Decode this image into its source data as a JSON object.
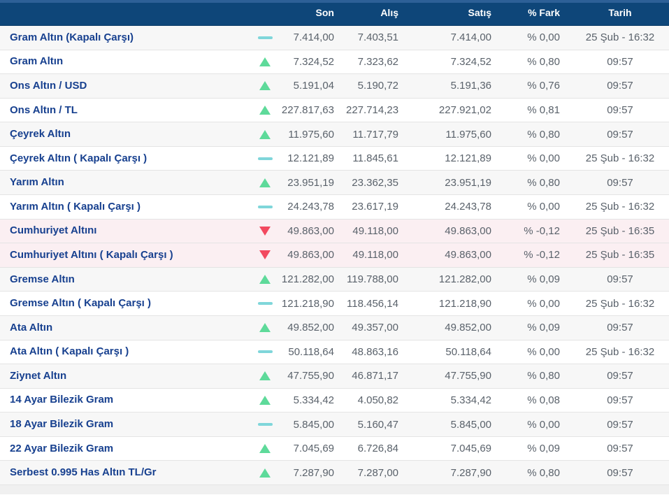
{
  "table": {
    "headers": {
      "son": "Son",
      "alis": "Alış",
      "satis": "Satış",
      "fark": "% Fark",
      "tarih": "Tarih"
    },
    "rows": [
      {
        "name": "Gram Altın (Kapalı Çarşı)",
        "dir": "flat",
        "son": "7.414,00",
        "alis": "7.403,51",
        "satis": "7.414,00",
        "fark": "% 0,00",
        "tarih": "25 Şub - 16:32"
      },
      {
        "name": "Gram Altın",
        "dir": "up",
        "son": "7.324,52",
        "alis": "7.323,62",
        "satis": "7.324,52",
        "fark": "% 0,80",
        "tarih": "09:57"
      },
      {
        "name": "Ons Altın / USD",
        "dir": "up",
        "son": "5.191,04",
        "alis": "5.190,72",
        "satis": "5.191,36",
        "fark": "% 0,76",
        "tarih": "09:57"
      },
      {
        "name": "Ons Altın / TL",
        "dir": "up",
        "son": "227.817,63",
        "alis": "227.714,23",
        "satis": "227.921,02",
        "fark": "% 0,81",
        "tarih": "09:57"
      },
      {
        "name": "Çeyrek Altın",
        "dir": "up",
        "son": "11.975,60",
        "alis": "11.717,79",
        "satis": "11.975,60",
        "fark": "% 0,80",
        "tarih": "09:57"
      },
      {
        "name": "Çeyrek Altın ( Kapalı Çarşı )",
        "dir": "flat",
        "son": "12.121,89",
        "alis": "11.845,61",
        "satis": "12.121,89",
        "fark": "% 0,00",
        "tarih": "25 Şub - 16:32"
      },
      {
        "name": "Yarım Altın",
        "dir": "up",
        "son": "23.951,19",
        "alis": "23.362,35",
        "satis": "23.951,19",
        "fark": "% 0,80",
        "tarih": "09:57"
      },
      {
        "name": "Yarım Altın ( Kapalı Çarşı )",
        "dir": "flat",
        "son": "24.243,78",
        "alis": "23.617,19",
        "satis": "24.243,78",
        "fark": "% 0,00",
        "tarih": "25 Şub - 16:32"
      },
      {
        "name": "Cumhuriyet Altını",
        "dir": "down",
        "son": "49.863,00",
        "alis": "49.118,00",
        "satis": "49.863,00",
        "fark": "% -0,12",
        "tarih": "25 Şub - 16:35"
      },
      {
        "name": "Cumhuriyet Altını ( Kapalı Çarşı )",
        "dir": "down",
        "son": "49.863,00",
        "alis": "49.118,00",
        "satis": "49.863,00",
        "fark": "% -0,12",
        "tarih": "25 Şub - 16:35"
      },
      {
        "name": "Gremse Altın",
        "dir": "up",
        "son": "121.282,00",
        "alis": "119.788,00",
        "satis": "121.282,00",
        "fark": "% 0,09",
        "tarih": "09:57"
      },
      {
        "name": "Gremse Altın ( Kapalı Çarşı )",
        "dir": "flat",
        "son": "121.218,90",
        "alis": "118.456,14",
        "satis": "121.218,90",
        "fark": "% 0,00",
        "tarih": "25 Şub - 16:32"
      },
      {
        "name": "Ata Altın",
        "dir": "up",
        "son": "49.852,00",
        "alis": "49.357,00",
        "satis": "49.852,00",
        "fark": "% 0,09",
        "tarih": "09:57"
      },
      {
        "name": "Ata Altın ( Kapalı Çarşı )",
        "dir": "flat",
        "son": "50.118,64",
        "alis": "48.863,16",
        "satis": "50.118,64",
        "fark": "% 0,00",
        "tarih": "25 Şub - 16:32"
      },
      {
        "name": "Ziynet Altın",
        "dir": "up",
        "son": "47.755,90",
        "alis": "46.871,17",
        "satis": "47.755,90",
        "fark": "% 0,80",
        "tarih": "09:57"
      },
      {
        "name": "14 Ayar Bilezik Gram",
        "dir": "up",
        "son": "5.334,42",
        "alis": "4.050,82",
        "satis": "5.334,42",
        "fark": "% 0,08",
        "tarih": "09:57"
      },
      {
        "name": "18 Ayar Bilezik Gram",
        "dir": "flat",
        "son": "5.845,00",
        "alis": "5.160,47",
        "satis": "5.845,00",
        "fark": "% 0,00",
        "tarih": "09:57"
      },
      {
        "name": "22 Ayar Bilezik Gram",
        "dir": "up",
        "son": "7.045,69",
        "alis": "6.726,84",
        "satis": "7.045,69",
        "fark": "% 0,09",
        "tarih": "09:57"
      },
      {
        "name": "Serbest 0.995 Has Altın TL/Gr",
        "dir": "up",
        "son": "7.287,90",
        "alis": "7.287,00",
        "satis": "7.287,90",
        "fark": "% 0,80",
        "tarih": "09:57"
      }
    ]
  },
  "colors": {
    "header_bg": "#0e4679",
    "header_top": "#2d6097",
    "header_line": "#0a3a66",
    "up": "#5eda9a",
    "down": "#f2495f",
    "flat": "#7fd6da",
    "label_text": "#17408f",
    "value_text": "#5a626b",
    "row_alt_bg": "#f7f7f7",
    "row_down_bg": "#fbeff2",
    "footer_strip_bg": "#f0f0f0",
    "row_border": "#e4e4e4"
  }
}
